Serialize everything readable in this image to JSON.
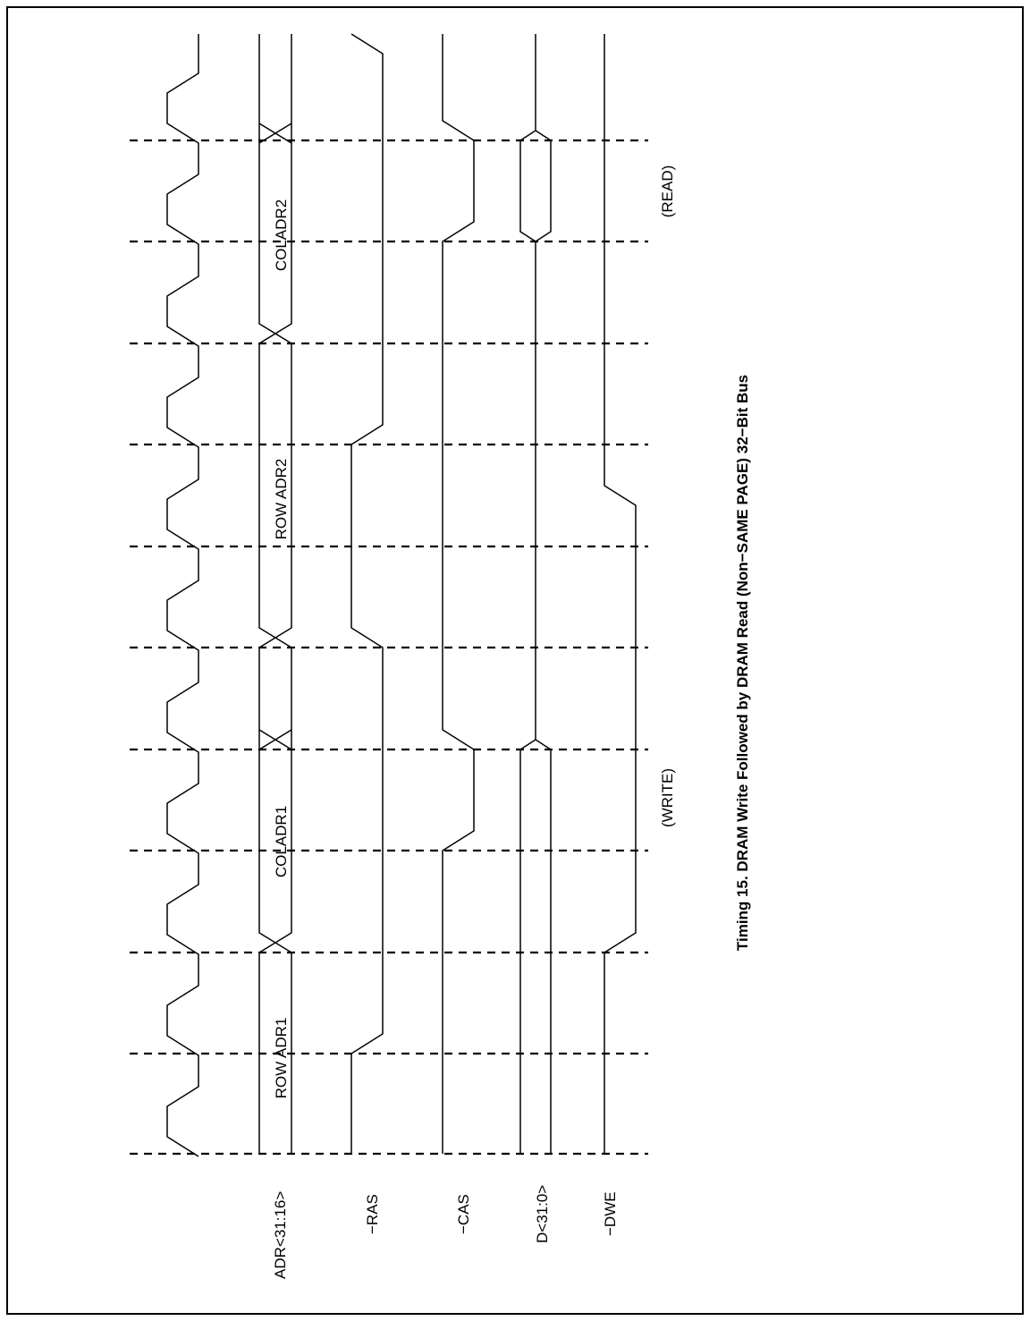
{
  "signals": {
    "adr": "ADR<31:16>",
    "ras": "−RAS",
    "cas": "−CAS",
    "data": "D<31:0>",
    "dwe": "−DWE"
  },
  "bus_values": {
    "row_adr1": "ROW ADR1",
    "coladr1": "COLADR1",
    "row_adr2": "ROW ADR2",
    "coladr2": "COLADR2"
  },
  "phase_labels": {
    "write": "(WRITE)",
    "read": "(READ)"
  },
  "caption": "Timing 15. DRAM Write Followed by DRAM Read (Non−SAME PAGE) 32−Bit Bus"
}
